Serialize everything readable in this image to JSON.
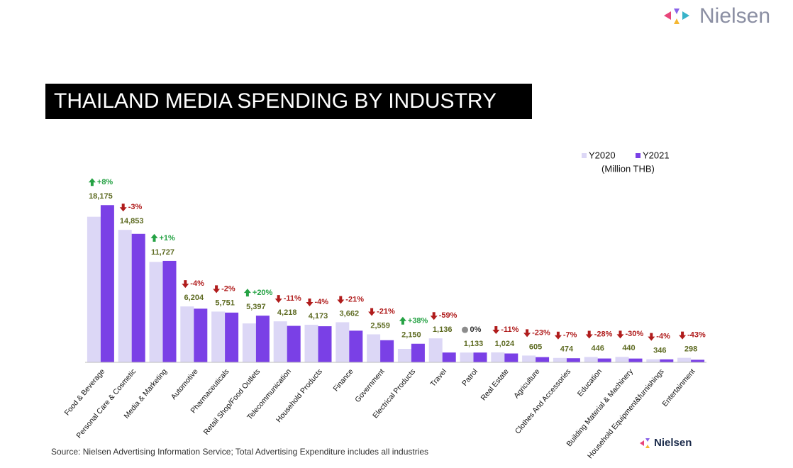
{
  "brand": "Nielsen",
  "source": "Source: Nielsen Advertising Information Service; Total Advertising Expenditure includes all industries",
  "chart_data": {
    "type": "bar",
    "title": "THAILAND MEDIA SPENDING BY INDUSTRY",
    "unit_label": "(Million THB)",
    "categories": [
      "Food & Beverage",
      "Personal Care & Cosmetic",
      "Media & Marketing",
      "Automotive",
      "Pharmaceuticals",
      "Retail Shop/Food Outlets",
      "Telecommunication",
      "Household Products",
      "Finance",
      "Government",
      "Electrical Products",
      "Travel",
      "Patrol",
      "Real Estate",
      "Agriculture",
      "Clothes And Accessories",
      "Education",
      "Building Material & Machinery",
      "Household Equipment&furnishings",
      "Entertainment"
    ],
    "series": [
      {
        "name": "Y2020",
        "color": "#dcd7f6",
        "values": [
          16829,
          15312,
          11611,
          6463,
          5868,
          4498,
          4739,
          4347,
          4635,
          3239,
          1558,
          2771,
          1133,
          1151,
          786,
          510,
          619,
          629,
          360,
          523
        ]
      },
      {
        "name": "Y2021",
        "color": "#7a40e6",
        "values": [
          18175,
          14853,
          11727,
          6204,
          5751,
          5397,
          4218,
          4173,
          3662,
          2559,
          2150,
          1136,
          1133,
          1024,
          605,
          474,
          446,
          440,
          346,
          298
        ],
        "value_labels": [
          "18,175",
          "14,853",
          "11,727",
          "6,204",
          "5,751",
          "5,397",
          "4,218",
          "4,173",
          "3,662",
          "2,559",
          "2,150",
          "1,136",
          "1,133",
          "1,024",
          "605",
          "474",
          "446",
          "440",
          "346",
          "298"
        ]
      }
    ],
    "changes": [
      8,
      -3,
      1,
      -4,
      -2,
      20,
      -11,
      -4,
      -21,
      -21,
      38,
      -59,
      0,
      -11,
      -23,
      -7,
      -28,
      -30,
      -4,
      -43
    ],
    "change_labels": [
      "+8%",
      "-3%",
      "+1%",
      "-4%",
      "-2%",
      "+20%",
      "-11%",
      "-4%",
      "-21%",
      "-21%",
      "+38%",
      "-59%",
      "0%",
      "-11%",
      "-23%",
      "-7%",
      "-28%",
      "-30%",
      "-4%",
      "-43%"
    ],
    "ylim": [
      0,
      20000
    ],
    "legend": "top-right"
  }
}
